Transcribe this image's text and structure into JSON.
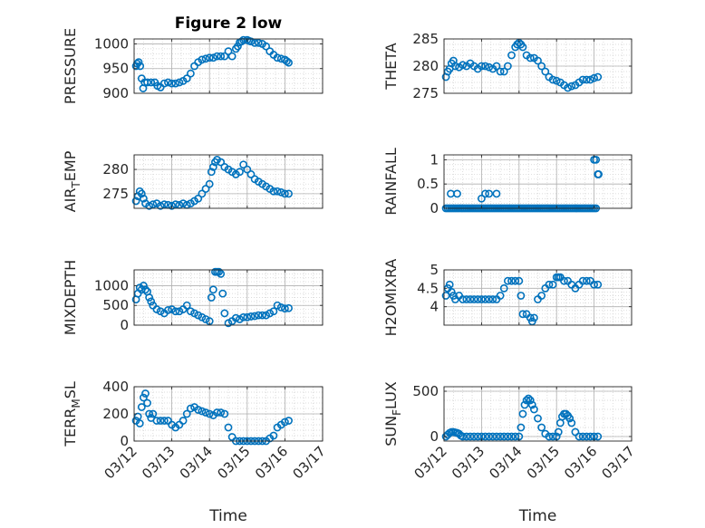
{
  "figure": {
    "title": "Figure 2 low",
    "colors": {
      "marker": "#0072BD",
      "axis": "#262626",
      "grid": "#b0b0b0"
    }
  },
  "chart_data": [
    {
      "id": "pressure",
      "type": "scatter",
      "col": 0,
      "row": 0,
      "ylabel": "PRESSURE",
      "ylabel_sub": "",
      "ylabel_post": "",
      "title": "Figure 2 low",
      "xlim": [
        0,
        5
      ],
      "ylim": [
        900,
        1010
      ],
      "yticks": [
        900,
        950,
        1000
      ],
      "yticklabels": [
        "900",
        "950",
        "1000"
      ],
      "grid": true,
      "x": [
        0.05,
        0.08,
        0.12,
        0.16,
        0.2,
        0.24,
        0.28,
        0.35,
        0.45,
        0.55,
        0.62,
        0.7,
        0.8,
        0.9,
        1.0,
        1.1,
        1.2,
        1.3,
        1.4,
        1.5,
        1.6,
        1.7,
        1.8,
        1.9,
        2.0,
        2.1,
        2.2,
        2.3,
        2.4,
        2.5,
        2.6,
        2.7,
        2.75,
        2.8,
        2.85,
        2.9,
        3.0,
        3.05,
        3.1,
        3.2,
        3.3,
        3.4,
        3.5,
        3.6,
        3.7,
        3.8,
        3.9,
        4.0,
        4.05,
        4.1
      ],
      "y": [
        955,
        960,
        963,
        955,
        930,
        910,
        922,
        922,
        922,
        922,
        915,
        912,
        920,
        922,
        920,
        920,
        922,
        925,
        930,
        940,
        955,
        963,
        968,
        970,
        972,
        972,
        975,
        975,
        975,
        985,
        975,
        990,
        995,
        1003,
        1005,
        1008,
        1008,
        1006,
        1005,
        1002,
        1002,
        1000,
        995,
        985,
        978,
        972,
        970,
        968,
        965,
        962
      ]
    },
    {
      "id": "theta",
      "type": "scatter",
      "col": 1,
      "row": 0,
      "ylabel": "THETA",
      "ylabel_sub": "",
      "ylabel_post": "",
      "xlim": [
        0,
        5
      ],
      "ylim": [
        275,
        285
      ],
      "yticks": [
        275,
        280,
        285
      ],
      "yticklabels": [
        "275",
        "280",
        "285"
      ],
      "grid": true,
      "x": [
        0.05,
        0.1,
        0.15,
        0.2,
        0.25,
        0.3,
        0.4,
        0.5,
        0.6,
        0.7,
        0.8,
        0.9,
        1.0,
        1.1,
        1.2,
        1.3,
        1.4,
        1.5,
        1.6,
        1.7,
        1.8,
        1.9,
        1.95,
        2.0,
        2.05,
        2.1,
        2.2,
        2.3,
        2.4,
        2.5,
        2.6,
        2.7,
        2.8,
        2.9,
        3.0,
        3.1,
        3.2,
        3.3,
        3.4,
        3.5,
        3.6,
        3.7,
        3.8,
        3.9,
        4.0,
        4.1
      ],
      "y": [
        278,
        279,
        279.5,
        280.5,
        281,
        280,
        279.8,
        280.2,
        280,
        280.5,
        280,
        279.5,
        280,
        280,
        279.8,
        279.5,
        280,
        279,
        279,
        280,
        282,
        283.5,
        284,
        284.3,
        284,
        283.5,
        282,
        281.5,
        281.5,
        281,
        280,
        279,
        278,
        277.5,
        277.3,
        277,
        276.5,
        276,
        276.3,
        276.5,
        277,
        277.5,
        277.5,
        277.5,
        277.8,
        278
      ]
    },
    {
      "id": "air_temp",
      "type": "scatter",
      "col": 0,
      "row": 1,
      "ylabel": "AIR",
      "ylabel_sub": "T",
      "ylabel_post": "EMP",
      "xlim": [
        0,
        5
      ],
      "ylim": [
        272,
        283
      ],
      "yticks": [
        275,
        280
      ],
      "yticklabels": [
        "275",
        "280"
      ],
      "grid": true,
      "x": [
        0.05,
        0.1,
        0.15,
        0.2,
        0.25,
        0.3,
        0.4,
        0.5,
        0.6,
        0.7,
        0.8,
        0.9,
        1.0,
        1.1,
        1.2,
        1.3,
        1.4,
        1.5,
        1.6,
        1.7,
        1.8,
        1.9,
        2.0,
        2.05,
        2.1,
        2.15,
        2.2,
        2.3,
        2.4,
        2.5,
        2.6,
        2.7,
        2.8,
        2.9,
        3.0,
        3.1,
        3.2,
        3.3,
        3.4,
        3.5,
        3.6,
        3.7,
        3.8,
        3.9,
        4.0,
        4.1
      ],
      "y": [
        273.5,
        274.5,
        275.5,
        275,
        274,
        273,
        272.5,
        272.8,
        273,
        272.5,
        272.8,
        272.7,
        272.5,
        272.8,
        272.7,
        273,
        272.7,
        273,
        273.5,
        274,
        275,
        276,
        277,
        279.5,
        280.5,
        281.5,
        282,
        281.5,
        280.5,
        280,
        279.5,
        279,
        279.5,
        281,
        280,
        279,
        278,
        277.5,
        277,
        276.5,
        276,
        275.5,
        275.5,
        275.3,
        275,
        275
      ]
    },
    {
      "id": "rainfall",
      "type": "scatter",
      "col": 1,
      "row": 1,
      "ylabel": "RAINFALL",
      "ylabel_sub": "",
      "ylabel_post": "",
      "xlim": [
        0,
        5
      ],
      "ylim": [
        0,
        1.1
      ],
      "yticks": [
        0,
        0.5,
        1
      ],
      "yticklabels": [
        "0",
        "0.5",
        "1"
      ],
      "grid": true,
      "x": [
        0.05,
        0.1,
        0.15,
        0.2,
        0.25,
        0.3,
        0.35,
        0.4,
        0.45,
        0.5,
        0.55,
        0.6,
        0.65,
        0.7,
        0.75,
        0.8,
        0.85,
        0.9,
        0.95,
        1.0,
        1.05,
        1.1,
        1.15,
        1.2,
        1.25,
        1.3,
        1.35,
        1.4,
        1.45,
        1.5,
        1.55,
        1.6,
        1.65,
        1.7,
        1.75,
        1.8,
        1.85,
        1.9,
        1.95,
        2.0,
        2.05,
        2.1,
        2.15,
        2.2,
        2.25,
        2.3,
        2.35,
        2.4,
        2.45,
        2.5,
        2.55,
        2.6,
        2.65,
        2.7,
        2.75,
        2.8,
        2.85,
        2.9,
        2.95,
        3.0,
        3.05,
        3.1,
        3.15,
        3.2,
        3.25,
        3.3,
        3.35,
        3.4,
        3.45,
        3.5,
        3.55,
        3.6,
        3.65,
        3.7,
        3.75,
        3.8,
        3.85,
        3.9,
        3.95,
        4.0,
        4.05,
        0.18,
        0.35,
        1.0,
        1.1,
        1.2,
        1.4,
        4.0,
        4.05,
        4.1,
        4.12
      ],
      "y": [
        0,
        0,
        0,
        0,
        0,
        0,
        0,
        0,
        0,
        0,
        0,
        0,
        0,
        0,
        0,
        0,
        0,
        0,
        0,
        0,
        0,
        0,
        0,
        0,
        0,
        0,
        0,
        0,
        0,
        0,
        0,
        0,
        0,
        0,
        0,
        0,
        0,
        0,
        0,
        0,
        0,
        0,
        0,
        0,
        0,
        0,
        0,
        0,
        0,
        0,
        0,
        0,
        0,
        0,
        0,
        0,
        0,
        0,
        0,
        0,
        0,
        0,
        0,
        0,
        0,
        0,
        0,
        0,
        0,
        0,
        0,
        0,
        0,
        0,
        0,
        0,
        0,
        0,
        0,
        0,
        0,
        0.3,
        0.3,
        0.2,
        0.3,
        0.3,
        0.3,
        1.0,
        1.0,
        0.7,
        0.7
      ]
    },
    {
      "id": "mixdepth",
      "type": "scatter",
      "col": 0,
      "row": 2,
      "ylabel": "MIXDEPTH",
      "ylabel_sub": "",
      "ylabel_post": "",
      "xlim": [
        0,
        5
      ],
      "ylim": [
        0,
        1400
      ],
      "yticks": [
        0,
        500,
        1000
      ],
      "yticklabels": [
        "0",
        "500",
        "1000"
      ],
      "grid": true,
      "x": [
        0.05,
        0.1,
        0.15,
        0.2,
        0.25,
        0.3,
        0.35,
        0.4,
        0.45,
        0.5,
        0.6,
        0.7,
        0.8,
        0.9,
        1.0,
        1.1,
        1.2,
        1.3,
        1.4,
        1.5,
        1.6,
        1.7,
        1.8,
        1.9,
        2.0,
        2.05,
        2.1,
        2.15,
        2.2,
        2.25,
        2.3,
        2.35,
        2.4,
        2.5,
        2.6,
        2.7,
        2.8,
        2.9,
        3.0,
        3.1,
        3.2,
        3.3,
        3.4,
        3.5,
        3.6,
        3.7,
        3.8,
        3.9,
        4.0,
        4.1
      ],
      "y": [
        650,
        800,
        950,
        900,
        1000,
        900,
        850,
        700,
        600,
        500,
        400,
        350,
        300,
        380,
        400,
        350,
        350,
        400,
        500,
        350,
        300,
        250,
        200,
        150,
        100,
        700,
        900,
        1350,
        1350,
        1350,
        1300,
        800,
        300,
        50,
        100,
        180,
        150,
        200,
        200,
        220,
        230,
        250,
        250,
        250,
        300,
        350,
        500,
        450,
        420,
        430
      ]
    },
    {
      "id": "h2omixra",
      "type": "scatter",
      "col": 1,
      "row": 2,
      "ylabel": "H2OMIXRA",
      "ylabel_sub": "",
      "ylabel_post": "",
      "xlim": [
        0,
        5
      ],
      "ylim": [
        3.5,
        5.0
      ],
      "yticks": [
        4,
        4.5,
        5
      ],
      "yticklabels": [
        "4",
        "4.5",
        "5"
      ],
      "grid": true,
      "x": [
        0.05,
        0.1,
        0.15,
        0.2,
        0.25,
        0.3,
        0.4,
        0.5,
        0.6,
        0.7,
        0.8,
        0.9,
        1.0,
        1.1,
        1.2,
        1.3,
        1.4,
        1.5,
        1.6,
        1.7,
        1.8,
        1.9,
        2.0,
        2.05,
        2.1,
        2.2,
        2.3,
        2.35,
        2.4,
        2.5,
        2.6,
        2.7,
        2.8,
        2.9,
        3.0,
        3.05,
        3.1,
        3.2,
        3.3,
        3.4,
        3.5,
        3.6,
        3.7,
        3.8,
        3.9,
        4.0,
        4.1
      ],
      "y": [
        4.3,
        4.5,
        4.6,
        4.4,
        4.3,
        4.2,
        4.3,
        4.2,
        4.2,
        4.2,
        4.2,
        4.2,
        4.2,
        4.2,
        4.2,
        4.2,
        4.2,
        4.3,
        4.5,
        4.7,
        4.7,
        4.7,
        4.7,
        4.3,
        3.8,
        3.8,
        3.7,
        3.6,
        3.7,
        4.2,
        4.3,
        4.5,
        4.6,
        4.6,
        4.8,
        4.8,
        4.8,
        4.7,
        4.7,
        4.6,
        4.5,
        4.6,
        4.7,
        4.7,
        4.7,
        4.6,
        4.6
      ]
    },
    {
      "id": "terr_msl",
      "type": "scatter",
      "col": 0,
      "row": 3,
      "ylabel": "TERR",
      "ylabel_sub": "M",
      "ylabel_post": "SL",
      "xlim": [
        0,
        5
      ],
      "ylim": [
        0,
        400
      ],
      "yticks": [
        0,
        200,
        400
      ],
      "yticklabels": [
        "0",
        "200",
        "400"
      ],
      "grid": true,
      "x": [
        0.05,
        0.1,
        0.15,
        0.2,
        0.25,
        0.3,
        0.35,
        0.4,
        0.45,
        0.5,
        0.6,
        0.7,
        0.8,
        0.9,
        1.0,
        1.1,
        1.2,
        1.3,
        1.4,
        1.5,
        1.6,
        1.7,
        1.8,
        1.9,
        2.0,
        2.1,
        2.2,
        2.3,
        2.4,
        2.5,
        2.6,
        2.7,
        2.8,
        2.9,
        3.0,
        3.1,
        3.2,
        3.3,
        3.4,
        3.5,
        3.6,
        3.7,
        3.8,
        3.9,
        4.0,
        4.1
      ],
      "y": [
        150,
        180,
        130,
        250,
        320,
        350,
        280,
        200,
        170,
        200,
        150,
        150,
        150,
        150,
        120,
        100,
        120,
        150,
        200,
        240,
        250,
        230,
        220,
        210,
        200,
        190,
        210,
        210,
        200,
        100,
        30,
        0,
        0,
        0,
        0,
        0,
        0,
        0,
        0,
        0,
        20,
        40,
        100,
        120,
        140,
        150
      ]
    },
    {
      "id": "sun_flux",
      "type": "scatter",
      "col": 1,
      "row": 3,
      "ylabel": "SUN",
      "ylabel_sub": "F",
      "ylabel_post": "LUX",
      "xlim": [
        0,
        5
      ],
      "ylim": [
        -50,
        550
      ],
      "yticks": [
        0,
        500
      ],
      "yticklabels": [
        "0",
        "500"
      ],
      "grid": true,
      "x": [
        0.05,
        0.1,
        0.15,
        0.2,
        0.25,
        0.3,
        0.35,
        0.4,
        0.45,
        0.5,
        0.6,
        0.7,
        0.8,
        0.9,
        1.0,
        1.1,
        1.2,
        1.3,
        1.4,
        1.5,
        1.6,
        1.7,
        1.8,
        1.9,
        2.0,
        2.05,
        2.1,
        2.15,
        2.2,
        2.25,
        2.3,
        2.35,
        2.4,
        2.5,
        2.6,
        2.7,
        2.8,
        2.9,
        3.0,
        3.05,
        3.1,
        3.15,
        3.2,
        3.25,
        3.3,
        3.35,
        3.4,
        3.5,
        3.6,
        3.7,
        3.8,
        3.9,
        4.0,
        4.1
      ],
      "y": [
        0,
        20,
        40,
        50,
        50,
        45,
        40,
        30,
        10,
        0,
        0,
        0,
        0,
        0,
        0,
        0,
        0,
        0,
        0,
        0,
        0,
        0,
        0,
        0,
        0,
        100,
        250,
        350,
        400,
        420,
        400,
        350,
        300,
        200,
        100,
        30,
        0,
        0,
        0,
        50,
        150,
        220,
        250,
        250,
        230,
        200,
        150,
        50,
        0,
        0,
        0,
        0,
        0,
        0
      ]
    }
  ],
  "x_axis": {
    "tick_values": [
      0,
      1,
      2,
      3,
      4,
      5
    ],
    "tick_labels": [
      "03/12",
      "03/13",
      "03/14",
      "03/15",
      "03/16",
      "03/17"
    ],
    "label": "Time"
  }
}
